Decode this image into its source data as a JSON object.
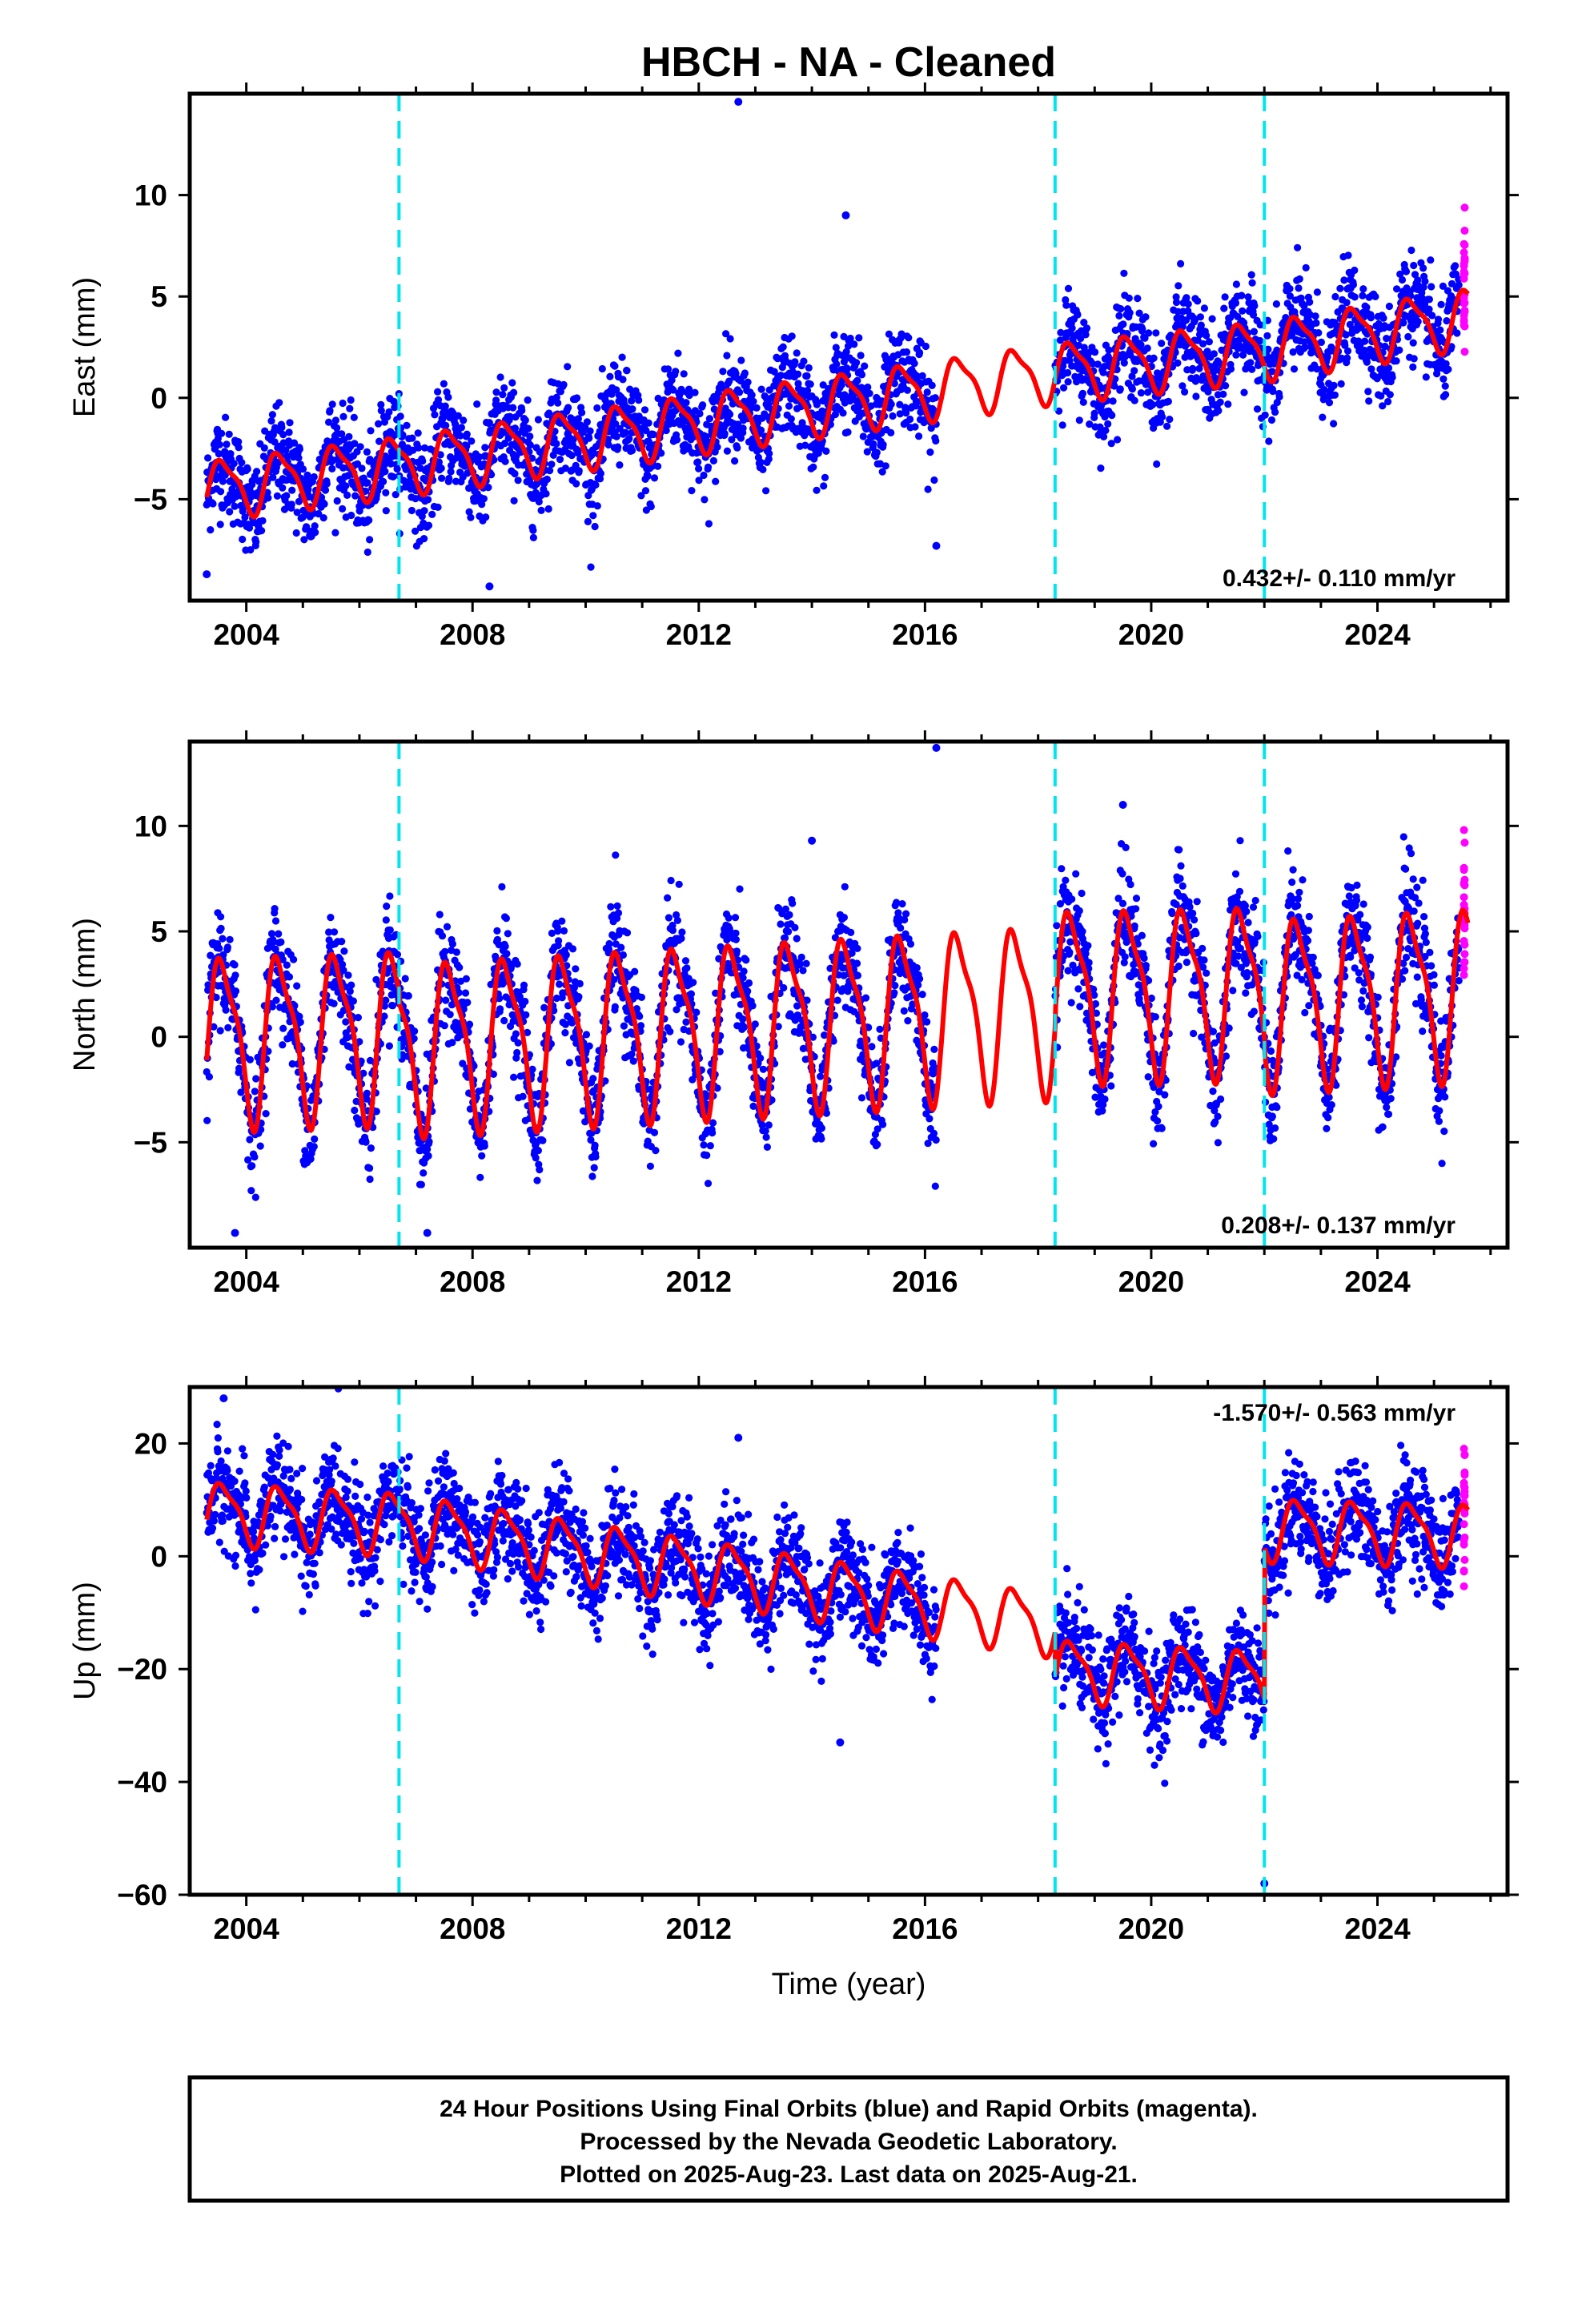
{
  "title": "HBCH  - NA - Cleaned",
  "xlabel": "Time (year)",
  "footer": {
    "line1": "24 Hour Positions Using Final Orbits (blue) and Rapid Orbits (magenta).",
    "line2": "Processed by the Nevada Geodetic Laboratory.",
    "line3": "Plotted on 2025-Aug-23. Last data on 2025-Aug-21."
  },
  "colors": {
    "final_points": "#0000ff",
    "rapid_points": "#ff00ff",
    "model": "#ff0000",
    "offsets": "#00e5ee"
  },
  "chart_data": [
    {
      "type": "scatter",
      "component": "East",
      "ylabel": "East (mm)",
      "rate_label": "0.432+/- 0.110 mm/yr",
      "xlim": [
        2003.0,
        2026.3
      ],
      "ylim": [
        -10,
        15
      ],
      "xticks": [
        2004,
        2008,
        2012,
        2016,
        2020,
        2024
      ],
      "yticks": [
        -5,
        0,
        5,
        10
      ],
      "offsets": [
        2006.7,
        2018.3,
        2022.0
      ],
      "data_start": 2003.3,
      "data_gap": [
        2016.2,
        2018.3
      ],
      "data_end": 2025.55,
      "rapid_start": 2025.45,
      "model": {
        "amplitude": 1.6,
        "segments": [
          {
            "x": [
              2003.3,
              2006.7
            ],
            "y": [
              -4.5,
              -3.3
            ]
          },
          {
            "x": [
              2006.7,
              2018.3
            ],
            "y": [
              -3.3,
              1.3
            ]
          },
          {
            "x": [
              2018.3,
              2022.0
            ],
            "y": [
              1.3,
              2.4
            ]
          },
          {
            "x": [
              2022.0,
              2025.6
            ],
            "y": [
              2.4,
              4.0
            ]
          }
        ]
      },
      "noise_sd": 1.2,
      "outliers": [
        [
          2012.7,
          14.6
        ],
        [
          2014.6,
          9.0
        ],
        [
          2016.2,
          -7.3
        ],
        [
          2008.3,
          -9.3
        ],
        [
          2003.3,
          -8.7
        ]
      ]
    },
    {
      "type": "scatter",
      "component": "North",
      "ylabel": "North (mm)",
      "rate_label": "0.208+/- 0.137 mm/yr",
      "xlim": [
        2003.0,
        2026.3
      ],
      "ylim": [
        -10,
        14
      ],
      "xticks": [
        2004,
        2008,
        2012,
        2016,
        2020,
        2024
      ],
      "yticks": [
        -5,
        0,
        5,
        10
      ],
      "offsets": [
        2006.7,
        2018.3,
        2022.0
      ],
      "data_start": 2003.3,
      "data_gap": [
        2016.2,
        2018.3
      ],
      "data_end": 2025.55,
      "rapid_start": 2025.45,
      "model": {
        "amplitude": 4.4,
        "segments": [
          {
            "x": [
              2003.3,
              2006.7
            ],
            "y": [
              0.0,
              0.3
            ]
          },
          {
            "x": [
              2006.7,
              2018.3
            ],
            "y": [
              -0.3,
              1.5
            ]
          },
          {
            "x": [
              2018.3,
              2022.0
            ],
            "y": [
              2.2,
              2.4
            ]
          },
          {
            "x": [
              2022.0,
              2025.6
            ],
            "y": [
              1.8,
              2.3
            ]
          }
        ]
      },
      "noise_sd": 1.3,
      "outliers": [
        [
          2016.2,
          13.7
        ],
        [
          2019.5,
          11.0
        ],
        [
          2014.0,
          9.3
        ],
        [
          2003.8,
          -9.3
        ],
        [
          2007.2,
          -9.3
        ]
      ]
    },
    {
      "type": "scatter",
      "component": "Up",
      "ylabel": "Up (mm)",
      "rate_label": "-1.570+/- 0.563 mm/yr",
      "xlim": [
        2003.0,
        2026.3
      ],
      "ylim": [
        -60,
        30
      ],
      "xticks": [
        2004,
        2008,
        2012,
        2016,
        2020,
        2024
      ],
      "yticks": [
        -60,
        -40,
        -20,
        0,
        20
      ],
      "offsets": [
        2006.7,
        2018.3,
        2022.0
      ],
      "data_start": 2003.3,
      "data_gap": [
        2016.2,
        2018.3
      ],
      "data_end": 2025.55,
      "rapid_start": 2025.45,
      "model": {
        "amplitude": 6.0,
        "segments": [
          {
            "x": [
              2003.3,
              2006.7
            ],
            "y": [
              8.0,
              6.0
            ]
          },
          {
            "x": [
              2006.7,
              2018.3
            ],
            "y": [
              6.0,
              -12.0
            ]
          },
          {
            "x": [
              2018.3,
              2022.0
            ],
            "y": [
              -20.0,
              -22.0
            ]
          },
          {
            "x": [
              2022.0,
              2025.6
            ],
            "y": [
              5.0,
              4.0
            ]
          }
        ]
      },
      "noise_sd": 4.5,
      "outliers": [
        [
          2022.0,
          -58.0
        ],
        [
          2014.5,
          -33.0
        ],
        [
          2012.7,
          21.0
        ],
        [
          2003.6,
          28.0
        ]
      ]
    }
  ]
}
